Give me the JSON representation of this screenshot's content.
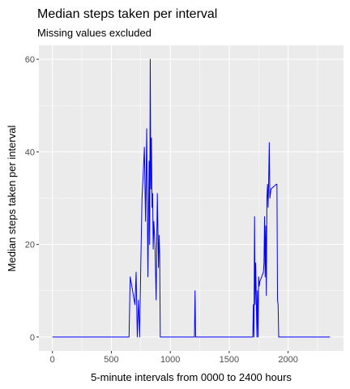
{
  "chart_data": {
    "type": "line",
    "title": "Median steps taken per interval",
    "subtitle": "Missing values excluded",
    "xlabel": "5-minute intervals from 0000 to 2400 hours",
    "ylabel": "Median steps taken per interval",
    "xlim": [
      -115,
      2470
    ],
    "ylim": [
      -3,
      63
    ],
    "x_ticks": [
      0,
      500,
      1000,
      1500,
      2000
    ],
    "y_ticks": [
      0,
      20,
      40,
      60
    ],
    "x_tick_labels": [
      "0",
      "500",
      "1000",
      "1500",
      "2000"
    ],
    "y_tick_labels": [
      "0",
      "20",
      "40",
      "60"
    ],
    "grid": true,
    "line_color": "#0000ff",
    "panel_color": "#ebebeb",
    "x": [
      0,
      500,
      650,
      660,
      680,
      700,
      710,
      720,
      730,
      740,
      750,
      760,
      770,
      780,
      790,
      800,
      810,
      820,
      825,
      830,
      835,
      840,
      845,
      850,
      855,
      860,
      870,
      880,
      890,
      900,
      905,
      910,
      915,
      920,
      925,
      930,
      935,
      940,
      945,
      955,
      1000,
      1200,
      1205,
      1210,
      1215,
      1220,
      1300,
      1500,
      1700,
      1705,
      1710,
      1715,
      1720,
      1725,
      1730,
      1735,
      1740,
      1745,
      1750,
      1755,
      1760,
      1790,
      1795,
      1800,
      1805,
      1810,
      1815,
      1820,
      1825,
      1830,
      1835,
      1840,
      1845,
      1850,
      1855,
      1900,
      1905,
      1910,
      1915,
      1920,
      1925,
      1930,
      2000,
      2200,
      2355
    ],
    "values": [
      0,
      0,
      0,
      13,
      10,
      7,
      14,
      0,
      8,
      0,
      16,
      30,
      35,
      41,
      25,
      45,
      13,
      38,
      20,
      60,
      32,
      43,
      28,
      31,
      19,
      25,
      20,
      8,
      31,
      15,
      22,
      18,
      0,
      0,
      0,
      0,
      0,
      0,
      0,
      0,
      0,
      0,
      0,
      10,
      0,
      0,
      0,
      0,
      0,
      7,
      0,
      26,
      7,
      16,
      8,
      0,
      10,
      0,
      13,
      11,
      12,
      14,
      16,
      26,
      13,
      24,
      9,
      30,
      33,
      28,
      34,
      42,
      30,
      31,
      32,
      33,
      33,
      8,
      7,
      0,
      0,
      0,
      0,
      0,
      0
    ]
  }
}
